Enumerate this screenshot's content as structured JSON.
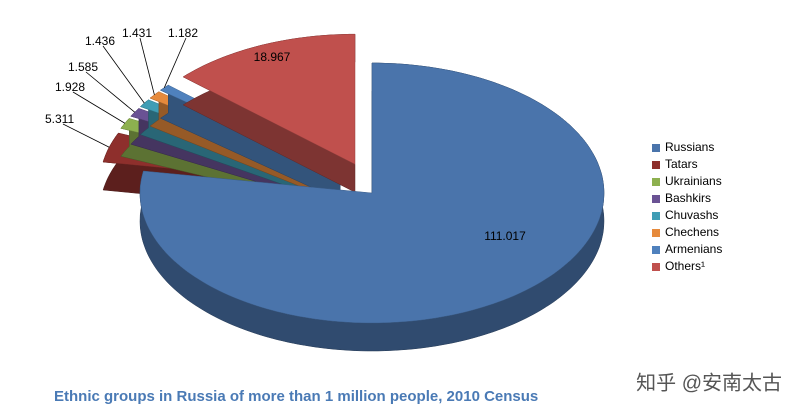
{
  "chart_data": {
    "type": "pie3d",
    "title": "Ethnic groups in Russia of more than 1 million people, 2010 Census",
    "categories": [
      "Russians",
      "Tatars",
      "Ukrainians",
      "Bashkirs",
      "Chuvashs",
      "Chechens",
      "Armenians",
      "Others¹"
    ],
    "values": [
      111.017,
      5.311,
      1.928,
      1.585,
      1.436,
      1.431,
      1.182,
      18.967
    ],
    "colors": [
      "#4a74ab",
      "#8e2f2c",
      "#8db04f",
      "#6a5294",
      "#3f9db5",
      "#e68a3c",
      "#4f81bd",
      "#c0504d"
    ],
    "legend": "right"
  },
  "watermark": "知乎 @安南太古"
}
